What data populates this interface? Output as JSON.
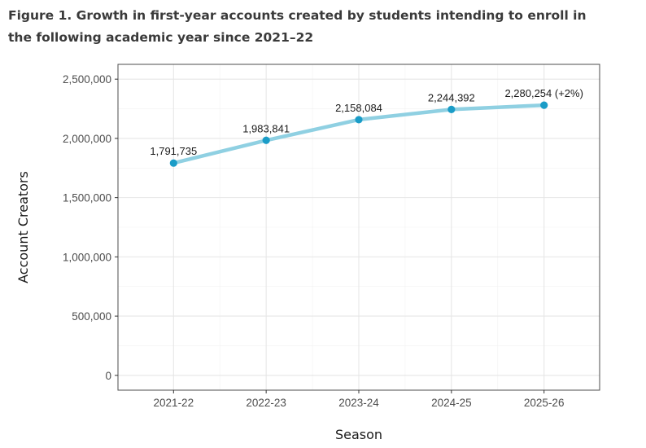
{
  "chart_data": {
    "type": "line",
    "title": "Figure 1. Growth in first-year accounts created by students intending to enroll in the following academic year since 2021–22",
    "xlabel": "Season",
    "ylabel": "Account Creators",
    "categories": [
      "2021-22",
      "2022-23",
      "2023-24",
      "2024-25",
      "2025-26"
    ],
    "series": [
      {
        "name": "Account Creators",
        "values": [
          1791735,
          1983841,
          2158084,
          2244392,
          2280254
        ]
      }
    ],
    "data_labels": [
      "1,791,735",
      "1,983,841",
      "2,158,084",
      "2,244,392",
      "2,280,254 (+2%)"
    ],
    "yticks": [
      0,
      500000,
      1000000,
      1500000,
      2000000,
      2500000
    ],
    "ytick_labels": [
      "0",
      "500,000",
      "1,000,000",
      "1,500,000",
      "2,000,000",
      "2,500,000"
    ],
    "ylim": [
      -125000,
      2625000
    ],
    "grid": true,
    "colors": {
      "line": "#8fd0e2",
      "point": "#1a9cc7",
      "grid_major": "#e6e6e6",
      "grid_minor": "#f2f2f2",
      "panel_border": "#4d4d4d"
    }
  }
}
